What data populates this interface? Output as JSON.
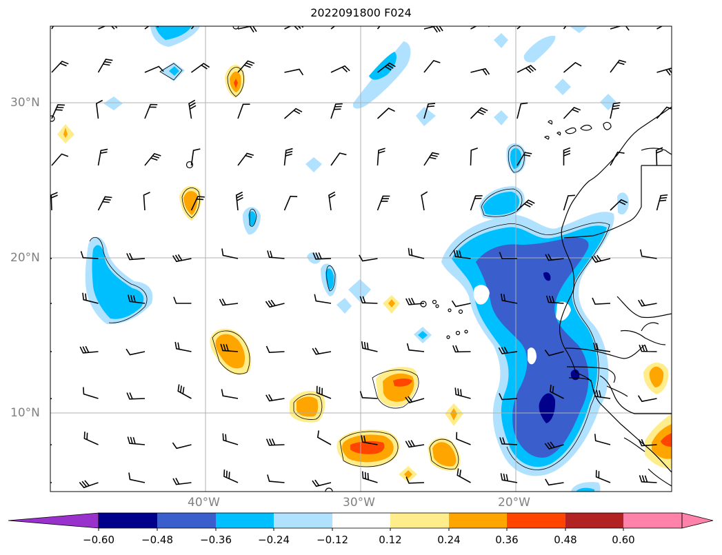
{
  "title": "2022091800 F024",
  "map": {
    "lat_labels": [
      "30°N",
      "20°N",
      "10°N"
    ],
    "lon_labels": [
      "40°W",
      "30°W",
      "20°W"
    ],
    "gridline_color": "#b0b0b0",
    "label_color": "#808080"
  },
  "colorbar": {
    "ticks": [
      "−0.60",
      "−0.48",
      "−0.36",
      "−0.24",
      "−0.12",
      "0.12",
      "0.24",
      "0.36",
      "0.48",
      "0.60"
    ],
    "colors": [
      "#9932cc",
      "#00008b",
      "#3a5fcd",
      "#00bfff",
      "#b0e2ff",
      "#ffffff",
      "#ffec8b",
      "#ffa500",
      "#ff4500",
      "#b22222",
      "#ff82ab"
    ]
  }
}
